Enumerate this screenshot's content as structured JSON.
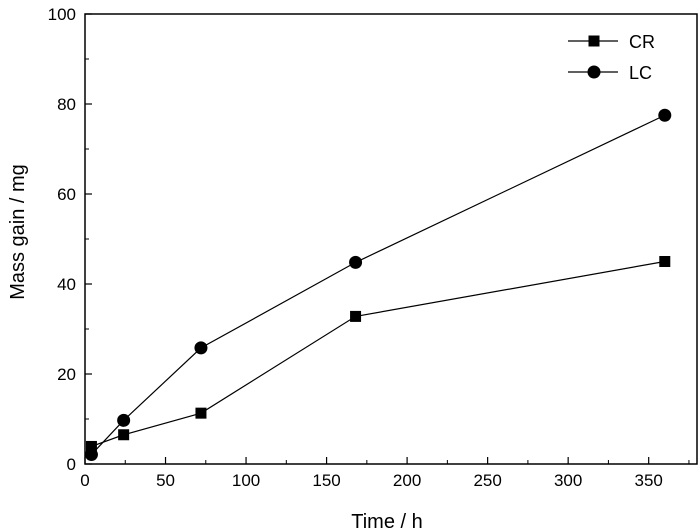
{
  "chart_data": {
    "type": "line",
    "title": "",
    "xlabel": "Time / h",
    "ylabel": "Mass gain / mg",
    "xlim": [
      0,
      380
    ],
    "ylim": [
      0,
      100
    ],
    "xticks": [
      0,
      50,
      100,
      150,
      200,
      250,
      300,
      350
    ],
    "yticks": [
      0,
      20,
      40,
      60,
      80,
      100
    ],
    "grid": false,
    "legend_position": "top-right",
    "series": [
      {
        "name": "CR",
        "marker": "square",
        "color": "#000000",
        "x": [
          4,
          24,
          72,
          168,
          360
        ],
        "y": [
          3.9,
          6.5,
          11.3,
          32.8,
          45.0
        ]
      },
      {
        "name": "LC",
        "marker": "circle",
        "color": "#000000",
        "x": [
          4,
          24,
          72,
          168,
          360
        ],
        "y": [
          2.1,
          9.7,
          25.8,
          44.8,
          77.5
        ]
      }
    ]
  }
}
